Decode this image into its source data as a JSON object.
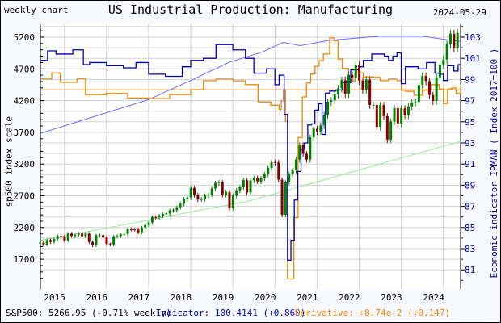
{
  "header": {
    "left_label": "weekly chart",
    "title": "US Industrial Production: Manufacturing",
    "date": "2024-05-29"
  },
  "footer": {
    "sp500": "S&P500: 5266.95 (-0.71% weekly)",
    "indicator": "Indicator: 100.4141 (+0.860)",
    "derivative": "Derivative: +8.74e-2 (+0.147)"
  },
  "colors": {
    "sp_up": "#008000",
    "sp_down": "#880000",
    "indicator": "#0000bb",
    "indicator_avg": "#6666ff",
    "derivative": "#ee8800",
    "derivative_zero": "#ffaa44",
    "sp_trend": "#90ee90",
    "grid": "#d0d0d0"
  },
  "chart_data": {
    "type": "line",
    "title": "US Industrial Production: Manufacturing",
    "ylabel_left": "sp500 index scale",
    "ylabel_right": "Economic indicator IPMAN ( Index 2017=100 )",
    "xlim": [
      2014.43,
      2024.41
    ],
    "ylim_left": [
      1400,
      5360
    ],
    "ylim_right": [
      80.1,
      104.2
    ],
    "x_ticks": [
      "2015",
      "2016",
      "2017",
      "2018",
      "2019",
      "2020",
      "2021",
      "2022",
      "2023",
      "2024"
    ],
    "y_ticks_left": [
      "5200",
      "4700",
      "4200",
      "3700",
      "3200",
      "2700",
      "2200",
      "1700"
    ],
    "y_ticks_right": [
      "103",
      "101",
      "99",
      "97",
      "95",
      "93",
      "91",
      "89",
      "87",
      "85",
      "83",
      "81"
    ],
    "grid": true,
    "series": [
      {
        "name": "S&P500",
        "axis": "left",
        "start": 2014.42,
        "step_months": 1,
        "values": [
          1960,
          1931,
          2003,
          1972,
          2018,
          2068,
          2059,
          1995,
          2105,
          2068,
          2086,
          2107,
          2063,
          2104,
          1972,
          1920,
          2079,
          2080,
          2044,
          1940,
          1932,
          2060,
          2065,
          2097,
          2099,
          2174,
          2171,
          2168,
          2126,
          2199,
          2239,
          2279,
          2364,
          2363,
          2384,
          2412,
          2423,
          2470,
          2472,
          2519,
          2575,
          2648,
          2674,
          2824,
          2714,
          2641,
          2648,
          2705,
          2718,
          2816,
          2902,
          2914,
          2712,
          2760,
          2507,
          2704,
          2784,
          2834,
          2946,
          2752,
          2942,
          2980,
          2926,
          2977,
          3038,
          3141,
          3231,
          3226,
          2954,
          2400,
          2912,
          3044,
          3100,
          3271,
          3500,
          3363,
          3270,
          3622,
          3756,
          3714,
          3811,
          3973,
          4181,
          4204,
          4298,
          4395,
          4523,
          4308,
          4605,
          4567,
          4766,
          4516,
          4374,
          4530,
          4132,
          4132,
          3785,
          4130,
          3955,
          3586,
          3872,
          4080,
          3840,
          4077,
          3970,
          4109,
          4169,
          4180,
          4450,
          4589,
          4508,
          4288,
          4194,
          4568,
          4770,
          4846,
          5096,
          5254,
          5036,
          5267
        ]
      },
      {
        "name": "Indicator",
        "axis": "right",
        "style": "step",
        "points": [
          [
            2014.43,
            100.8
          ],
          [
            2014.6,
            101.7
          ],
          [
            2014.8,
            101.4
          ],
          [
            2015.2,
            101.8
          ],
          [
            2015.45,
            100.4
          ],
          [
            2015.6,
            100.6
          ],
          [
            2016.0,
            100.3
          ],
          [
            2016.4,
            100.1
          ],
          [
            2016.7,
            100.6
          ],
          [
            2017.0,
            99.5
          ],
          [
            2017.4,
            99.3
          ],
          [
            2017.8,
            100.2
          ],
          [
            2018.0,
            100.8
          ],
          [
            2018.3,
            101.0
          ],
          [
            2018.6,
            102.3
          ],
          [
            2019.0,
            101.8
          ],
          [
            2019.3,
            101.0
          ],
          [
            2019.5,
            99.6
          ],
          [
            2019.8,
            100.0
          ],
          [
            2020.0,
            98.5
          ],
          [
            2020.1,
            99.4
          ],
          [
            2020.22,
            95.7
          ],
          [
            2020.3,
            81.9
          ],
          [
            2020.38,
            83.8
          ],
          [
            2020.46,
            87.6
          ],
          [
            2020.54,
            90.3
          ],
          [
            2020.62,
            92.4
          ],
          [
            2020.7,
            93.0
          ],
          [
            2020.78,
            94.7
          ],
          [
            2020.87,
            94.8
          ],
          [
            2020.95,
            96.1
          ],
          [
            2021.04,
            96.7
          ],
          [
            2021.12,
            93.8
          ],
          [
            2021.2,
            97.7
          ],
          [
            2021.3,
            97.9
          ],
          [
            2021.45,
            98.0
          ],
          [
            2021.6,
            98.7
          ],
          [
            2021.8,
            99.9
          ],
          [
            2022.0,
            100.2
          ],
          [
            2022.1,
            100.8
          ],
          [
            2022.3,
            101.4
          ],
          [
            2022.6,
            101.2
          ],
          [
            2022.7,
            100.8
          ],
          [
            2022.8,
            101.2
          ],
          [
            2022.9,
            101.5
          ],
          [
            2023.0,
            98.6
          ],
          [
            2023.1,
            100.2
          ],
          [
            2023.4,
            100.0
          ],
          [
            2023.6,
            100.6
          ],
          [
            2023.8,
            99.6
          ],
          [
            2023.9,
            99.5
          ],
          [
            2024.0,
            98.9
          ],
          [
            2024.1,
            100.3
          ],
          [
            2024.25,
            99.8
          ],
          [
            2024.35,
            100.4
          ],
          [
            2024.41,
            100.4
          ]
        ]
      },
      {
        "axis": "right",
        "style": "line",
        "points": [
          [
            2014.43,
            93.9
          ],
          [
            2017.0,
            97.1
          ],
          [
            2018.0,
            98.9
          ],
          [
            2018.9,
            100.6
          ],
          [
            2019.7,
            101.6
          ],
          [
            2020.2,
            102.5
          ],
          [
            2020.6,
            102.2
          ],
          [
            2021.3,
            102.7
          ],
          [
            2022.5,
            103.1
          ],
          [
            2023.5,
            103.1
          ],
          [
            2024.0,
            102.8
          ],
          [
            2024.41,
            102.6
          ]
        ]
      },
      {
        "name": "Derivative",
        "axis": "hidden",
        "zero_line": true,
        "style": "step",
        "points": [
          [
            2014.43,
            0.19
          ],
          [
            2014.7,
            0.3
          ],
          [
            2014.9,
            0.13
          ],
          [
            2015.3,
            0.2
          ],
          [
            2015.5,
            -0.09
          ],
          [
            2016.0,
            -0.07
          ],
          [
            2016.5,
            -0.15
          ],
          [
            2017.0,
            -0.16
          ],
          [
            2017.5,
            -0.09
          ],
          [
            2018.0,
            0.0
          ],
          [
            2018.3,
            0.16
          ],
          [
            2018.6,
            0.19
          ],
          [
            2019.0,
            0.16
          ],
          [
            2019.3,
            0.09
          ],
          [
            2019.6,
            -0.22
          ],
          [
            2019.9,
            -0.28
          ],
          [
            2020.1,
            -0.36
          ],
          [
            2020.15,
            -0.2
          ],
          [
            2020.2,
            0.0
          ],
          [
            2020.25,
            -0.57
          ],
          [
            2020.3,
            -3.4
          ],
          [
            2020.45,
            -2.3
          ],
          [
            2020.55,
            -0.86
          ],
          [
            2020.65,
            -0.13
          ],
          [
            2020.75,
            0.12
          ],
          [
            2020.85,
            0.28
          ],
          [
            2020.95,
            0.42
          ],
          [
            2021.05,
            0.52
          ],
          [
            2021.15,
            0.64
          ],
          [
            2021.3,
            0.93
          ],
          [
            2021.4,
            0.88
          ],
          [
            2021.5,
            0.55
          ],
          [
            2021.6,
            0.38
          ],
          [
            2021.75,
            0.16
          ],
          [
            2021.9,
            0.3
          ],
          [
            2022.1,
            0.23
          ],
          [
            2022.3,
            0.22
          ],
          [
            2022.5,
            0.16
          ],
          [
            2022.7,
            0.19
          ],
          [
            2022.9,
            0.16
          ],
          [
            2023.0,
            -0.01
          ],
          [
            2023.1,
            -0.03
          ],
          [
            2023.3,
            -0.1
          ],
          [
            2023.5,
            -0.01
          ],
          [
            2023.7,
            0.09
          ],
          [
            2023.9,
            0.01
          ],
          [
            2024.0,
            -0.25
          ],
          [
            2024.1,
            0.01
          ],
          [
            2024.2,
            0.03
          ],
          [
            2024.3,
            -0.07
          ],
          [
            2024.41,
            0.087
          ]
        ]
      },
      {
        "axis": "left",
        "style": "line",
        "points": [
          [
            2014.43,
            1994
          ],
          [
            2019.4,
            2620
          ],
          [
            2024.41,
            3559
          ]
        ]
      }
    ]
  }
}
